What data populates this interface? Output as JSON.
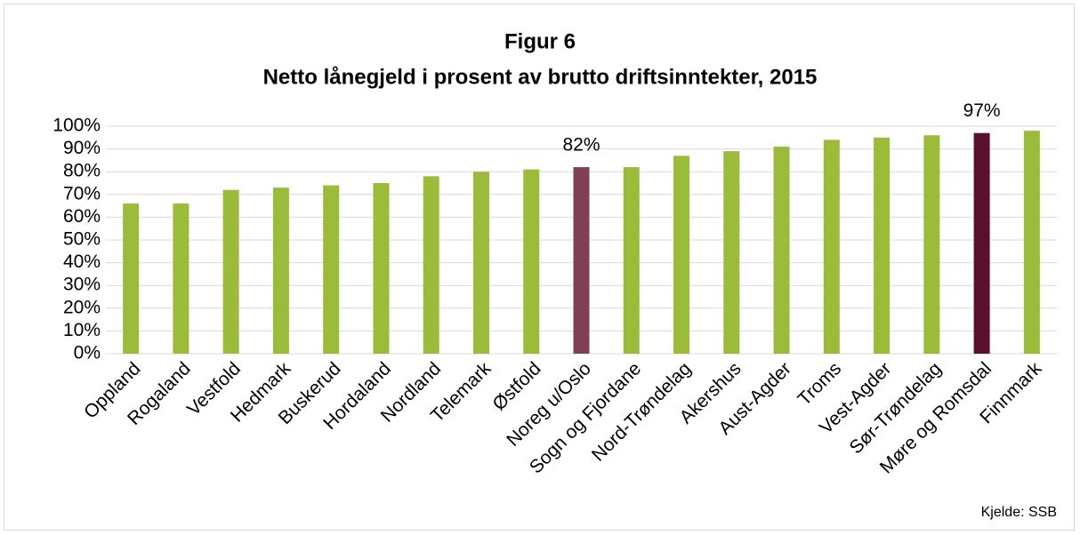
{
  "chart_data": {
    "type": "bar",
    "title": "Figur 6",
    "subtitle": "Netto lånegjeld i prosent av brutto driftsinntekter, 2015",
    "categories": [
      "Oppland",
      "Rogaland",
      "Vestfold",
      "Hedmark",
      "Buskerud",
      "Hordaland",
      "Nordland",
      "Telemark",
      "Østfold",
      "Noreg u/Oslo",
      "Sogn og Fjordane",
      "Nord-Trøndelag",
      "Akershus",
      "Aust-Agder",
      "Troms",
      "Vest-Agder",
      "Sør-Trøndelag",
      "Møre og Romsdal",
      "Finnmark"
    ],
    "values": [
      66,
      66,
      72,
      73,
      74,
      75,
      78,
      80,
      81,
      82,
      82,
      87,
      89,
      91,
      94,
      95,
      96,
      97,
      98
    ],
    "value_labels": [
      null,
      null,
      null,
      null,
      null,
      null,
      null,
      null,
      null,
      "82%",
      null,
      null,
      null,
      null,
      null,
      null,
      null,
      "97%",
      null
    ],
    "colors": [
      "#9bbb3b",
      "#9bbb3b",
      "#9bbb3b",
      "#9bbb3b",
      "#9bbb3b",
      "#9bbb3b",
      "#9bbb3b",
      "#9bbb3b",
      "#9bbb3b",
      "#7f3f55",
      "#9bbb3b",
      "#9bbb3b",
      "#9bbb3b",
      "#9bbb3b",
      "#9bbb3b",
      "#9bbb3b",
      "#9bbb3b",
      "#5a0f2e",
      "#9bbb3b"
    ],
    "ylim": [
      0,
      100
    ],
    "yticks": [
      {
        "value": 0,
        "label": "0%"
      },
      {
        "value": 10,
        "label": "10%"
      },
      {
        "value": 20,
        "label": "20%"
      },
      {
        "value": 30,
        "label": "30%"
      },
      {
        "value": 40,
        "label": "40%"
      },
      {
        "value": 50,
        "label": "50%"
      },
      {
        "value": 60,
        "label": "60%"
      },
      {
        "value": 70,
        "label": "70%"
      },
      {
        "value": 80,
        "label": "80%"
      },
      {
        "value": 90,
        "label": "90%"
      },
      {
        "value": 100,
        "label": "100%"
      }
    ],
    "grid": true,
    "source": "Kjelde: SSB"
  }
}
